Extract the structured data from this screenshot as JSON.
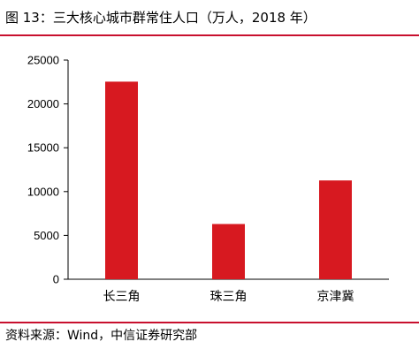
{
  "title": "图 13：三大核心城市群常住人口（万人，2018 年）",
  "source": "资料来源：Wind，中信证券研究部",
  "colors": {
    "bar": "#d71920",
    "rule": "#c8102e",
    "axis": "#000000"
  },
  "chart_data": {
    "type": "bar",
    "title": "图 13：三大核心城市群常住人口（万人，2018 年）",
    "categories": [
      "长三角",
      "珠三角",
      "京津冀"
    ],
    "values": [
      22540,
      6300,
      11270
    ],
    "ylim": [
      0,
      25000
    ],
    "yticks": [
      0,
      5000,
      10000,
      15000,
      20000,
      25000
    ],
    "grid": false,
    "legend": "none"
  }
}
